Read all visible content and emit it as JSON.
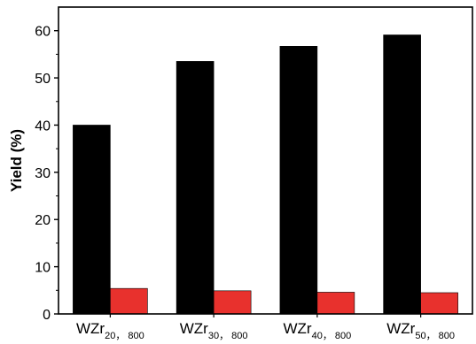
{
  "chart_data": {
    "type": "bar",
    "title": "",
    "xlabel": "",
    "ylabel": "Yield (%)",
    "ylim": [
      0,
      65
    ],
    "yticks": [
      0,
      10,
      20,
      30,
      40,
      50,
      60
    ],
    "grid": false,
    "categories": [
      {
        "main": "WZr",
        "sub": "20， 800"
      },
      {
        "main": "WZr",
        "sub": "30， 800"
      },
      {
        "main": "WZr",
        "sub": "40， 800"
      },
      {
        "main": "WZr",
        "sub": "50， 800"
      }
    ],
    "series": [
      {
        "color": "#000000",
        "values": [
          40.0,
          53.5,
          56.7,
          59.1
        ]
      },
      {
        "color": "#e8312d",
        "values": [
          5.4,
          4.9,
          4.6,
          4.5
        ]
      }
    ]
  }
}
